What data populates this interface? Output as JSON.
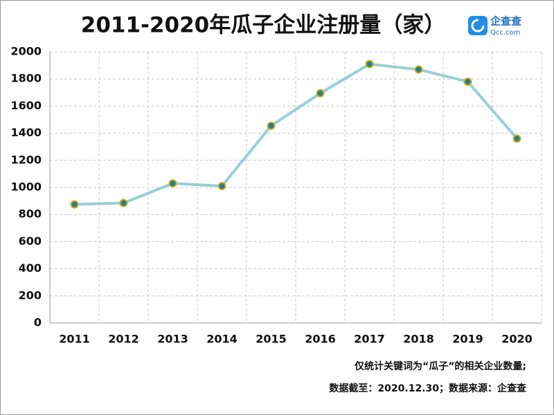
{
  "chart_data": {
    "type": "line",
    "title": "2011-2020年瓜子企业注册量（家）",
    "categories": [
      "2011",
      "2012",
      "2013",
      "2014",
      "2015",
      "2016",
      "2017",
      "2018",
      "2019",
      "2020"
    ],
    "series": [
      {
        "name": "瓜子企业注册量",
        "color": "#96cfd6",
        "marker_fill": "#17868a",
        "marker_edge": "#e0a21e",
        "values": [
          875,
          885,
          1030,
          1010,
          1455,
          1695,
          1910,
          1870,
          1780,
          1360
        ]
      }
    ],
    "ylim": [
      0,
      2000
    ],
    "yticks": [
      0,
      200,
      400,
      600,
      800,
      1000,
      1200,
      1400,
      1600,
      1800,
      2000
    ],
    "grid": true,
    "legend": false,
    "notes": [
      "仅统计关键词为“瓜子”的相关企业数量;",
      "数据截至：2020.12.30；数据来源：企查查"
    ]
  },
  "logo": {
    "name": "企查查",
    "site": "Qcc.com"
  }
}
